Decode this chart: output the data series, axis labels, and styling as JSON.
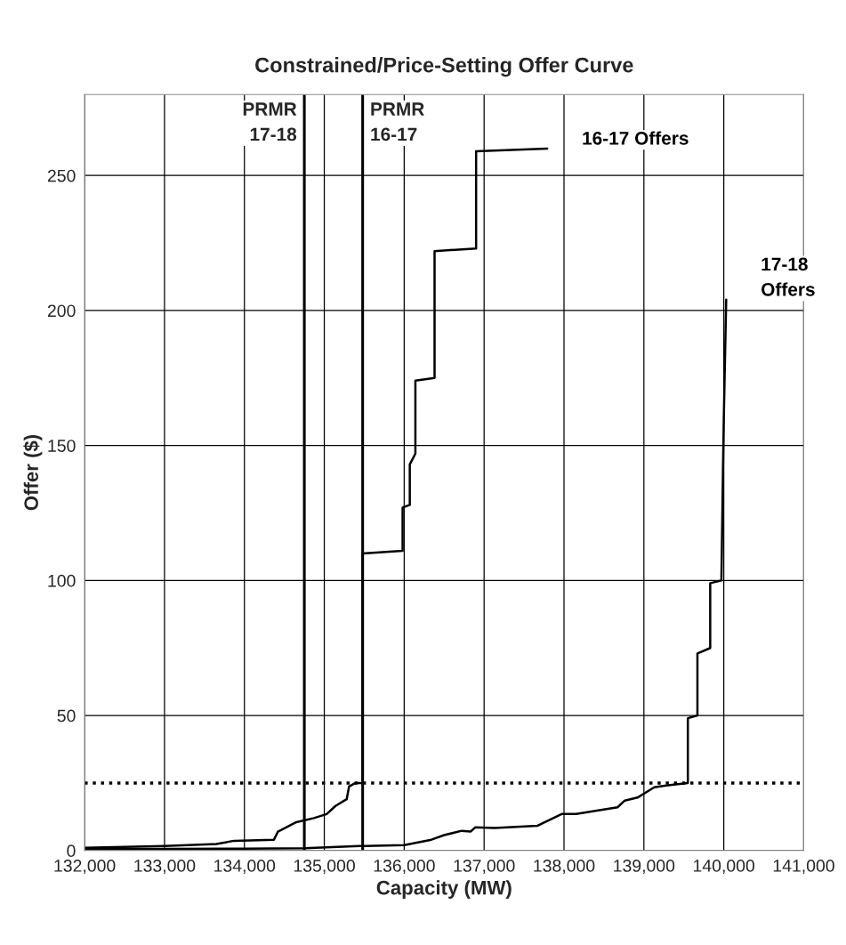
{
  "chart_data": {
    "type": "line",
    "title": "Constrained/Price-Setting Offer Curve",
    "xlabel": "Capacity (MW)",
    "ylabel": "Offer ($)",
    "xlim": [
      132000,
      141000
    ],
    "ylim": [
      0,
      280
    ],
    "xticks": [
      {
        "value": 132000,
        "label": "132,000"
      },
      {
        "value": 133000,
        "label": "133,000"
      },
      {
        "value": 134000,
        "label": "134,000"
      },
      {
        "value": 135000,
        "label": "135,000"
      },
      {
        "value": 136000,
        "label": "136,000"
      },
      {
        "value": 137000,
        "label": "137,000"
      },
      {
        "value": 138000,
        "label": "138,000"
      },
      {
        "value": 139000,
        "label": "139,000"
      },
      {
        "value": 140000,
        "label": "140,000"
      },
      {
        "value": 141000,
        "label": "141,000"
      }
    ],
    "yticks": [
      0,
      50,
      100,
      150,
      200,
      250
    ],
    "grid": true,
    "legend": false,
    "marker": "none",
    "line_style": "solid",
    "series": [
      {
        "name": "16-17 Offers",
        "color": "#000000",
        "x": [
          132000,
          133000,
          133650,
          133870,
          134370,
          134420,
          134650,
          134870,
          135030,
          135140,
          135280,
          135310,
          135390,
          135450,
          135480,
          135480,
          135980,
          135980,
          136070,
          136070,
          136140,
          136140,
          136380,
          136380,
          136900,
          136900,
          137790
        ],
        "values": [
          1,
          1.7,
          2.4,
          3.6,
          4,
          7,
          10.5,
          12,
          13.5,
          16.5,
          19,
          23.7,
          25,
          25,
          25,
          110,
          111,
          127,
          128,
          143,
          147,
          174,
          175,
          222,
          223,
          259,
          260
        ]
      },
      {
        "name": "17-18 Offers",
        "color": "#000000",
        "x": [
          132000,
          133000,
          134000,
          134750,
          135440,
          135510,
          136000,
          136340,
          136500,
          136720,
          136830,
          136890,
          137130,
          137670,
          137970,
          138150,
          138670,
          138760,
          138920,
          139130,
          139260,
          139550,
          139550,
          139670,
          139670,
          139830,
          139830,
          139970,
          139990,
          140000,
          140030
        ],
        "values": [
          0.5,
          0.6,
          0.7,
          0.8,
          1.7,
          1.7,
          2,
          4,
          5.7,
          7.3,
          7,
          8.6,
          8.3,
          9.2,
          13.5,
          13.5,
          16,
          18.5,
          19.6,
          23.4,
          24,
          25,
          49,
          50,
          73,
          75,
          99,
          100,
          142,
          160,
          204
        ]
      }
    ],
    "ref_lines": [
      {
        "axis": "x",
        "value": 134750,
        "label": "PRMR\n17-18",
        "color": "#000000",
        "line_style": "solid"
      },
      {
        "axis": "x",
        "value": 135480,
        "label": "PRMR\n16-17",
        "color": "#000000",
        "line_style": "solid"
      },
      {
        "axis": "y",
        "value": 25,
        "color": "#000000",
        "line_style": "dotted"
      }
    ]
  }
}
